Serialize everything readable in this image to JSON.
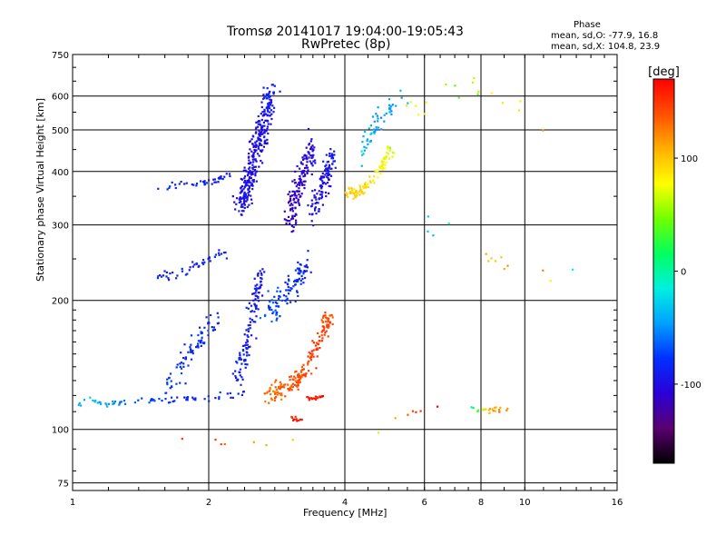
{
  "chart_data": {
    "type": "scatter",
    "title": "Tromsø 20141017 19:04:00-19:05:43",
    "subtitle": "RwPretec (8p)",
    "xlabel": "Frequency [MHz]",
    "ylabel": "Stationary phase Virtual Height [km]",
    "x_scale": "log2",
    "y_scale": "log",
    "xlim": [
      1,
      16
    ],
    "ylim": [
      72,
      750
    ],
    "x_ticks": [
      1,
      2,
      4,
      6,
      8,
      10,
      16
    ],
    "x_tick_labels": [
      "1",
      "2",
      "4",
      "6",
      "8",
      "10",
      "16"
    ],
    "y_ticks": [
      75,
      100,
      200,
      300,
      400,
      500,
      600,
      750
    ],
    "y_tick_labels": [
      "75",
      "100",
      "200",
      "300",
      "400",
      "500",
      "600",
      "750"
    ],
    "grid": true,
    "colorbar": {
      "label": "[deg]",
      "range": [
        -170,
        170
      ],
      "ticks": [
        100,
        0,
        -100
      ],
      "tick_labels": [
        "100",
        "0",
        "-100"
      ],
      "colors": [
        "#000000",
        "#5a006f",
        "#2a00d8",
        "#0030ff",
        "#00a0ff",
        "#00f0e0",
        "#00ff60",
        "#70ff00",
        "#ffff00",
        "#ffb000",
        "#ff5000",
        "#ff0000"
      ]
    },
    "stats": {
      "heading": "Phase",
      "line_o": "mean, sd,O: -77.9, 16.8",
      "line_x": "mean, sd,X: 104.8, 23.9"
    },
    "clusters": [
      {
        "trace": "o-low",
        "x": [
          1.0,
          1.08,
          1.18,
          1.3,
          1.45,
          1.6,
          1.8,
          2.0,
          2.2,
          2.4
        ],
        "y": [
          112,
          118,
          114,
          116,
          117,
          117,
          118,
          119,
          120,
          121
        ],
        "phase": [
          -40,
          -35,
          -40,
          -60,
          -70,
          -80,
          -85,
          -85,
          -90,
          -95
        ],
        "jitter": 0.012,
        "n": 70
      },
      {
        "trace": "o-e-rise",
        "x": [
          1.6,
          1.7,
          1.8,
          1.9,
          2.0,
          2.1
        ],
        "y": [
          125,
          135,
          150,
          160,
          172,
          180
        ],
        "phase": [
          -75,
          -78,
          -80,
          -82,
          -84,
          -85
        ],
        "jitter": 0.04,
        "n": 80
      },
      {
        "trace": "o-f-low",
        "x": [
          1.55,
          1.7,
          1.85,
          2.0,
          2.2
        ],
        "y": [
          225,
          230,
          240,
          250,
          260
        ],
        "phase": [
          -85,
          -86,
          -88,
          -88,
          -90
        ],
        "jitter": 0.02,
        "n": 45
      },
      {
        "trace": "o-f-upper",
        "x": [
          1.55,
          1.75,
          1.95,
          2.1,
          2.3
        ],
        "y": [
          365,
          370,
          375,
          385,
          400
        ],
        "phase": [
          -85,
          -87,
          -88,
          -90,
          -92
        ],
        "jitter": 0.015,
        "n": 40
      },
      {
        "trace": "o-col1",
        "x": [
          2.35,
          2.45,
          2.55,
          2.65,
          2.75
        ],
        "y": [
          330,
          380,
          450,
          520,
          620
        ],
        "phase": [
          -95,
          -98,
          -100,
          -95,
          -92
        ],
        "jitter": 0.05,
        "n": 320
      },
      {
        "trace": "o-col1-low",
        "x": [
          2.3,
          2.4,
          2.5,
          2.6
        ],
        "y": [
          125,
          150,
          185,
          230
        ],
        "phase": [
          -85,
          -88,
          -92,
          -95
        ],
        "jitter": 0.04,
        "n": 120
      },
      {
        "trace": "o-col2",
        "x": [
          3.0,
          3.1,
          3.2,
          3.3,
          3.4
        ],
        "y": [
          300,
          340,
          380,
          420,
          460
        ],
        "phase": [
          -110,
          -115,
          -110,
          -105,
          -100
        ],
        "jitter": 0.05,
        "n": 150
      },
      {
        "trace": "o-col3",
        "x": [
          3.4,
          3.5,
          3.6,
          3.7,
          3.8
        ],
        "y": [
          320,
          350,
          380,
          410,
          440
        ],
        "phase": [
          -95,
          -100,
          -100,
          -95,
          -90
        ],
        "jitter": 0.045,
        "n": 110
      },
      {
        "trace": "o-mid",
        "x": [
          2.7,
          2.85,
          3.0,
          3.15,
          3.3
        ],
        "y": [
          185,
          200,
          215,
          225,
          240
        ],
        "phase": [
          -70,
          -75,
          -80,
          -82,
          -85
        ],
        "jitter": 0.05,
        "n": 110
      },
      {
        "trace": "x-orange",
        "x": [
          2.7,
          2.9,
          3.1,
          3.3,
          3.5,
          3.7
        ],
        "y": [
          120,
          125,
          128,
          140,
          160,
          185
        ],
        "phase": [
          130,
          135,
          140,
          145,
          150,
          140
        ],
        "jitter": 0.04,
        "n": 180
      },
      {
        "trace": "x-red-low",
        "x": [
          3.3,
          3.45,
          3.6
        ],
        "y": [
          118,
          119,
          120
        ],
        "phase": [
          160,
          165,
          165
        ],
        "jitter": 0.01,
        "n": 20
      },
      {
        "trace": "x-red-104",
        "x": [
          3.0,
          3.1,
          3.2
        ],
        "y": [
          105,
          106,
          107
        ],
        "phase": [
          155,
          160,
          160
        ],
        "jitter": 0.015,
        "n": 12
      },
      {
        "trace": "x-yellow-arc",
        "x": [
          4.0,
          4.3,
          4.6,
          4.9,
          5.1
        ],
        "y": [
          355,
          360,
          380,
          420,
          460
        ],
        "phase": [
          100,
          95,
          90,
          80,
          60
        ],
        "jitter": 0.025,
        "n": 90
      },
      {
        "trace": "o-upper-cyan",
        "x": [
          4.3,
          4.5,
          4.7,
          5.0,
          5.4
        ],
        "y": [
          420,
          480,
          520,
          560,
          600
        ],
        "phase": [
          -30,
          -40,
          -50,
          -45,
          -40
        ],
        "jitter": 0.04,
        "n": 55
      },
      {
        "trace": "scatter-high",
        "x": [
          5.5,
          6.5,
          7.5,
          8.5,
          9.5,
          12.0
        ],
        "y": [
          560,
          590,
          620,
          600,
          560,
          530
        ],
        "phase": [
          90,
          60,
          30,
          120,
          80,
          140
        ],
        "jitter": 0.05,
        "n": 18
      },
      {
        "trace": "scatter-mid",
        "x": [
          5.5,
          6.5,
          8.0,
          9.0,
          10.5,
          13.0
        ],
        "y": [
          290,
          300,
          260,
          240,
          230,
          230
        ],
        "phase": [
          -60,
          -20,
          90,
          120,
          150,
          -30
        ],
        "jitter": 0.06,
        "n": 14
      },
      {
        "trace": "x-low-right",
        "x": [
          7.6,
          8.3,
          8.8,
          9.2
        ],
        "y": [
          112,
          111,
          111,
          111
        ],
        "phase": [
          0,
          110,
          120,
          115
        ],
        "jitter": 0.01,
        "n": 22
      },
      {
        "trace": "low-misc",
        "x": [
          1.7,
          2.45,
          4.4,
          5.6,
          6.8
        ],
        "y": [
          95,
          93,
          95,
          110,
          117
        ],
        "phase": [
          160,
          120,
          40,
          150,
          170
        ],
        "jitter": 0.02,
        "n": 14
      }
    ]
  }
}
